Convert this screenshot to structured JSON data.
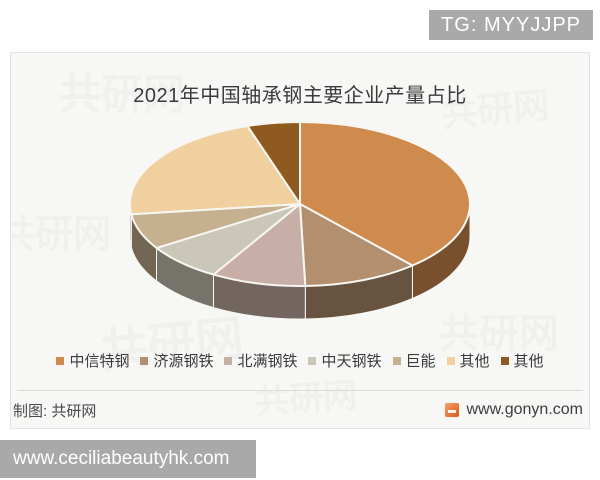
{
  "page": {
    "top_badge": "TG: MYYJJPP",
    "bottom_badge": "www.ceciliabeautyhk.com",
    "badge_color": "#a9a9a9"
  },
  "chart": {
    "title": "2021年中国轴承钢主要企业产量占比",
    "watermark": "共研网",
    "footer_left": "制图: 共研网",
    "footer_right": "www.gonyn.com",
    "footer_logo_icon": "gonyn-logo",
    "panel_background": "#f7f7f5"
  },
  "chart_data": {
    "type": "pie",
    "style": "3d",
    "title": "2021年中国轴承钢主要企业产量占比",
    "legend_position": "bottom",
    "direction": "clockwise",
    "start_angle_deg": 90,
    "labels": [
      "中信特钢",
      "济源钢铁",
      "北满钢铁",
      "中天钢铁",
      "巨能",
      "其他",
      "其他"
    ],
    "values": [
      38.5,
      11,
      9,
      7.5,
      7,
      22,
      5
    ],
    "unit": "%",
    "values_are_estimates": true,
    "value_labels_visible": false,
    "colors": [
      "#CF8A4E",
      "#B28F6E",
      "#C7AFA7",
      "#CBC7B8",
      "#C5B08F",
      "#EFD09E",
      "#8F5A20"
    ],
    "gap_stroke_color": "#f8f6f1",
    "depth_shade_factor": 0.58
  }
}
